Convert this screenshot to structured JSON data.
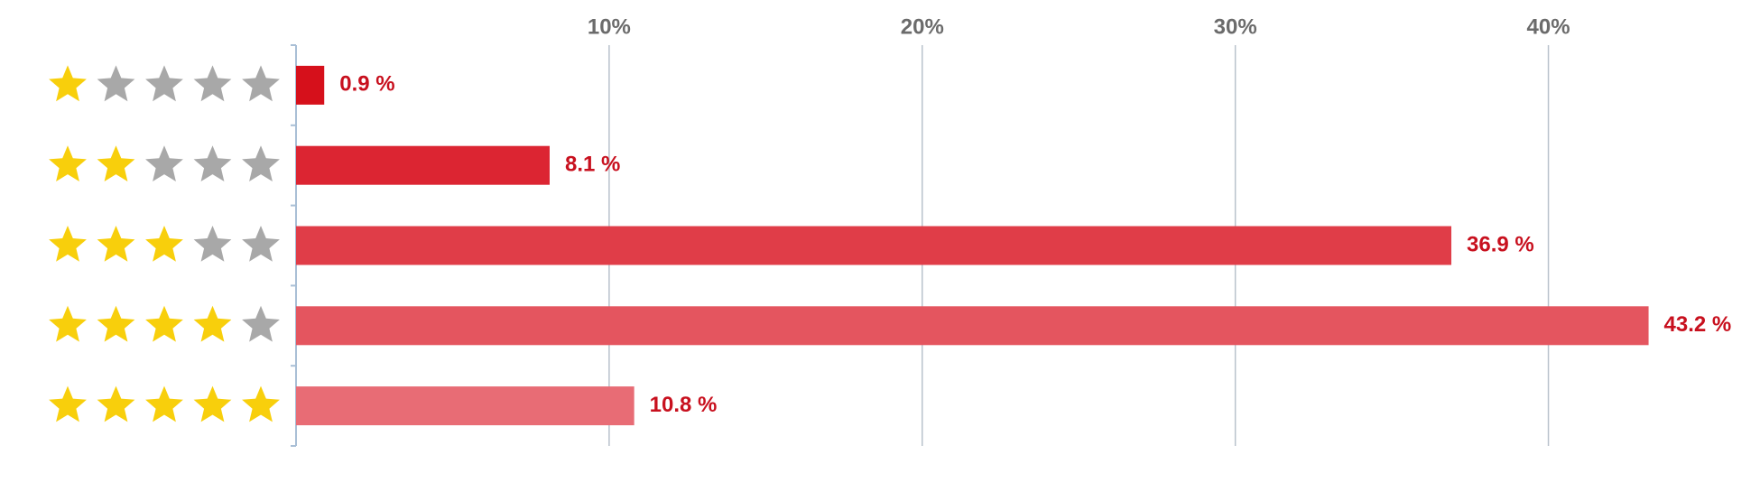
{
  "chart_data": {
    "type": "bar",
    "orientation": "horizontal",
    "categories": [
      1,
      2,
      3,
      4,
      5
    ],
    "rating_max": 5,
    "values": [
      0.9,
      8.1,
      36.9,
      43.2,
      10.8
    ],
    "value_labels": [
      "0.9 %",
      "8.1 %",
      "36.9 %",
      "43.2 %",
      "10.8 %"
    ],
    "colors": [
      "#d6101b",
      "#dc2532",
      "#e03d48",
      "#e4555f",
      "#e86c75"
    ],
    "xlim": [
      0,
      45
    ],
    "xticks": [
      {
        "value": 10,
        "label": "10%"
      },
      {
        "value": 20,
        "label": "20%"
      },
      {
        "value": 30,
        "label": "30%"
      },
      {
        "value": 40,
        "label": "40%"
      }
    ],
    "grid": true
  }
}
